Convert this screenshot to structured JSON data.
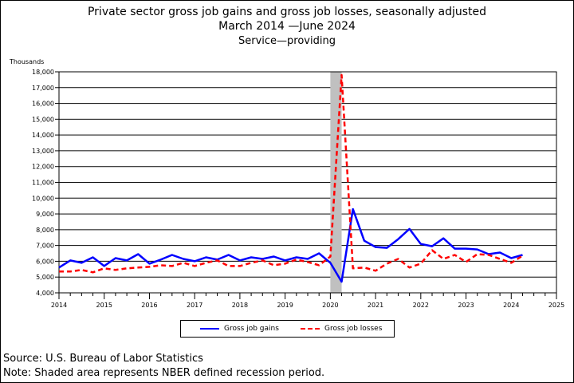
{
  "chart_data": {
    "type": "line",
    "title": "Private sector gross job gains and gross job losses, seasonally adjusted",
    "subtitle": "March 2014 —June 2024",
    "subtitle2": "Service—providing",
    "ylabel": "Thousands",
    "ylim": [
      4000,
      18000
    ],
    "ytick_step": 1000,
    "xlim": [
      2014,
      2025
    ],
    "xticks": [
      2014,
      2015,
      2016,
      2017,
      2018,
      2019,
      2020,
      2021,
      2022,
      2023,
      2024,
      2025
    ],
    "grid": "horizontal",
    "legend_position": "bottom",
    "recession_shading": {
      "start": 2020.0,
      "end": 2020.25
    },
    "x": [
      2014.0,
      2014.25,
      2014.5,
      2014.75,
      2015.0,
      2015.25,
      2015.5,
      2015.75,
      2016.0,
      2016.25,
      2016.5,
      2016.75,
      2017.0,
      2017.25,
      2017.5,
      2017.75,
      2018.0,
      2018.25,
      2018.5,
      2018.75,
      2019.0,
      2019.25,
      2019.5,
      2019.75,
      2020.0,
      2020.25,
      2020.5,
      2020.75,
      2021.0,
      2021.25,
      2021.5,
      2021.75,
      2022.0,
      2022.25,
      2022.5,
      2022.75,
      2023.0,
      2023.25,
      2023.5,
      2023.75,
      2024.0,
      2024.25
    ],
    "series": [
      {
        "name": "Gross job gains",
        "color": "#0000ff",
        "style": "solid",
        "values": [
          5600,
          6050,
          5900,
          6250,
          5700,
          6200,
          6050,
          6450,
          5850,
          6100,
          6400,
          6150,
          6000,
          6250,
          6100,
          6400,
          6050,
          6250,
          6150,
          6300,
          6050,
          6250,
          6150,
          6500,
          5900,
          4700,
          9300,
          7300,
          6900,
          6850,
          7400,
          8050,
          7100,
          6950,
          7450,
          6800,
          6800,
          6750,
          6450,
          6550,
          6200,
          6400
        ]
      },
      {
        "name": "Gross job losses",
        "color": "#ff0000",
        "style": "dashed",
        "values": [
          5350,
          5350,
          5450,
          5300,
          5550,
          5450,
          5550,
          5600,
          5650,
          5750,
          5700,
          5900,
          5700,
          5900,
          6050,
          5700,
          5700,
          5900,
          6050,
          5750,
          5850,
          6100,
          5950,
          5750,
          6300,
          17800,
          5550,
          5600,
          5400,
          5850,
          6150,
          5600,
          5850,
          6700,
          6150,
          6400,
          5950,
          6450,
          6400,
          6150,
          5900,
          6350
        ]
      }
    ]
  },
  "footer": {
    "source": "Source: U.S. Bureau of Labor Statistics",
    "note": "Note: Shaded area represents NBER defined recession period."
  }
}
